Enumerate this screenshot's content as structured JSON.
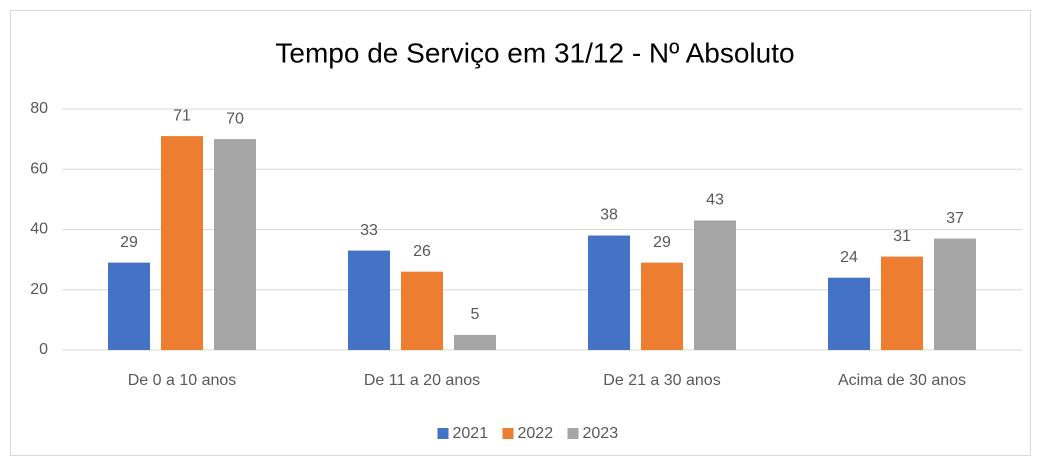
{
  "chart_data": {
    "type": "bar",
    "title": "Tempo de Serviço em 31/12 - Nº Absoluto",
    "categories": [
      "De 0 a 10 anos",
      "De 11 a 20 anos",
      "De 21 a 30 anos",
      "Acima de 30 anos"
    ],
    "series": [
      {
        "name": "2021",
        "color": "#4472c4",
        "values": [
          29,
          33,
          38,
          24
        ]
      },
      {
        "name": "2022",
        "color": "#ed7d31",
        "values": [
          71,
          26,
          29,
          31
        ]
      },
      {
        "name": "2023",
        "color": "#a5a5a5",
        "values": [
          70,
          5,
          43,
          37
        ]
      }
    ],
    "ylim": [
      0,
      80
    ],
    "yticks": [
      0,
      20,
      40,
      60,
      80
    ],
    "grid": true,
    "legend": "bottom"
  }
}
